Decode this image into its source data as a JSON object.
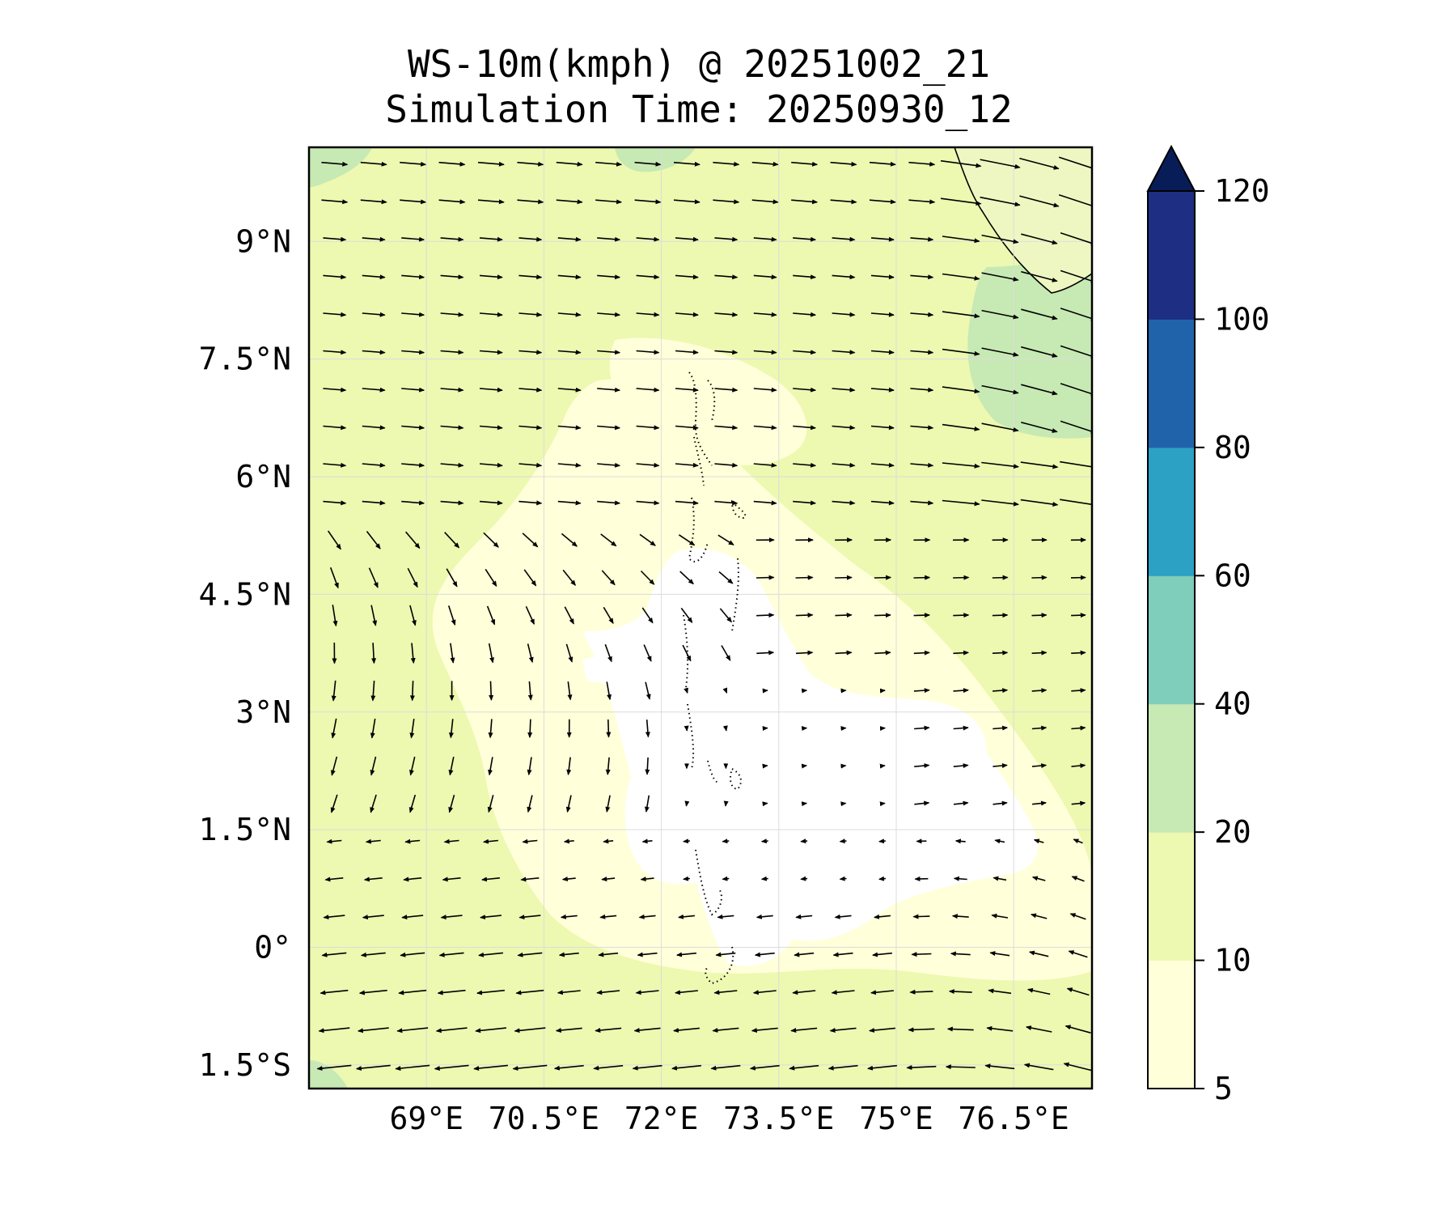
{
  "title": {
    "line1": "WS-10m(kmph) @ 20251002_21",
    "line2": "Simulation Time: 20250930_12"
  },
  "map": {
    "lon_range": [
      67.5,
      77.5
    ],
    "lat_range": [
      -1.8,
      10.2
    ],
    "x_ticks": [
      {
        "value": 69,
        "label": "69°E"
      },
      {
        "value": 70.5,
        "label": "70.5°E"
      },
      {
        "value": 72,
        "label": "72°E"
      },
      {
        "value": 73.5,
        "label": "73.5°E"
      },
      {
        "value": 75,
        "label": "75°E"
      },
      {
        "value": 76.5,
        "label": "76.5°E"
      }
    ],
    "y_ticks": [
      {
        "value": 9,
        "label": "9°N"
      },
      {
        "value": 7.5,
        "label": "7.5°N"
      },
      {
        "value": 6,
        "label": "6°N"
      },
      {
        "value": 4.5,
        "label": "4.5°N"
      },
      {
        "value": 3,
        "label": "3°N"
      },
      {
        "value": 1.5,
        "label": "1.5°N"
      },
      {
        "value": 0,
        "label": "0°"
      },
      {
        "value": -1.5,
        "label": "1.5°S"
      }
    ],
    "grid": true,
    "variable": "10 m wind speed (kmph) with wind vectors"
  },
  "colorbar": {
    "levels": [
      {
        "from": 5,
        "to": 10,
        "color": "#ffffd9"
      },
      {
        "from": 10,
        "to": 20,
        "color": "#edf8b1"
      },
      {
        "from": 20,
        "to": 40,
        "color": "#c7e9b4"
      },
      {
        "from": 40,
        "to": 60,
        "color": "#7fcdbb"
      },
      {
        "from": 60,
        "to": 80,
        "color": "#2ca1c4"
      },
      {
        "from": 80,
        "to": 100,
        "color": "#2163aa"
      },
      {
        "from": 100,
        "to": 120,
        "color": "#1d2e83"
      }
    ],
    "extend_color": "#081d58",
    "tick_labels": [
      "120",
      "100",
      "80",
      "60",
      "40",
      "20",
      "10",
      "5"
    ],
    "extend": "max"
  }
}
